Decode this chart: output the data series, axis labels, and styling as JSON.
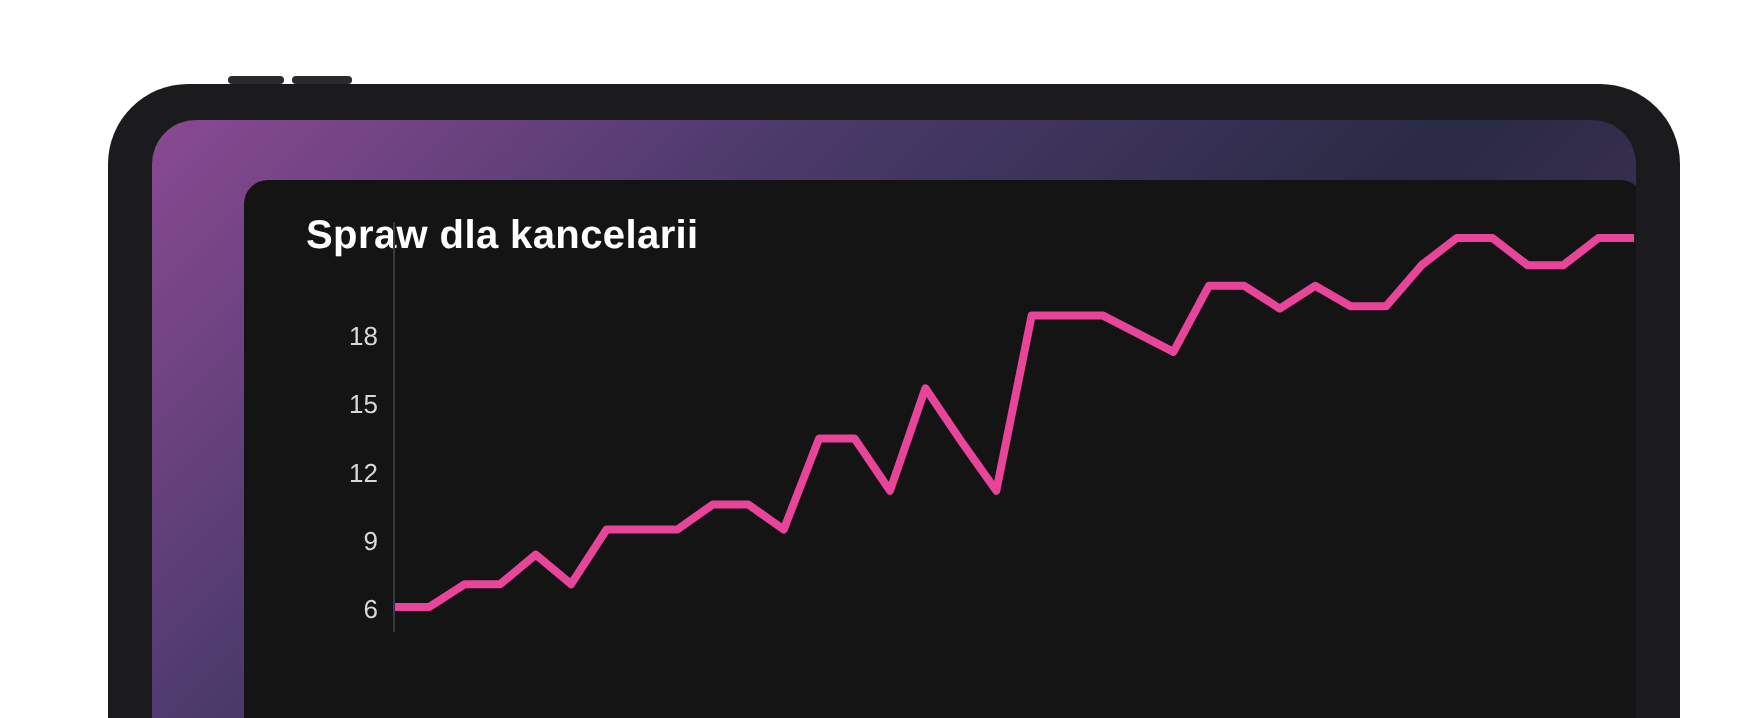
{
  "chart_data": {
    "type": "line",
    "title": "Spraw dla kancelarii",
    "categories": [
      null,
      null,
      null,
      null,
      null,
      null,
      null,
      null,
      null,
      null,
      null,
      null,
      null,
      null,
      null,
      null,
      null,
      null,
      null,
      null,
      null,
      null,
      null,
      null,
      null,
      null,
      null,
      null,
      null,
      null,
      null,
      null,
      null,
      null,
      null,
      null
    ],
    "series": [
      {
        "color": "#e8459a",
        "values": [
          6.1,
          6.1,
          7.1,
          7.1,
          8.4,
          7.1,
          9.5,
          9.5,
          9.5,
          10.6,
          10.6,
          9.5,
          13.5,
          13.5,
          11.2,
          15.7,
          13.4,
          11.2,
          18.9,
          18.9,
          18.9,
          18.1,
          17.3,
          20.2,
          20.2,
          19.2,
          20.2,
          19.3,
          19.3,
          21.1,
          22.3,
          22.3,
          21.1,
          21.1,
          22.3,
          22.3
        ]
      }
    ],
    "ylim": [
      5,
      23
    ],
    "yticks": [
      6,
      9,
      12,
      15,
      18
    ],
    "tick_labels": "y",
    "grid": false,
    "legend": false,
    "marker": "none",
    "line_style": "solid"
  }
}
